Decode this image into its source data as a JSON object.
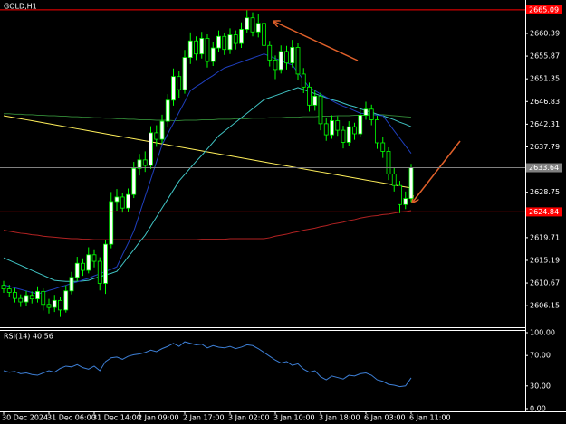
{
  "chart_data": [
    {
      "type": "candlestick",
      "title": "GOLD,H1",
      "categories": [
        "30 Dec 2024",
        null,
        null,
        null,
        null,
        null,
        null,
        null,
        "31 Dec 06:00",
        null,
        null,
        null,
        null,
        null,
        null,
        null,
        "31 Dec 14:00",
        null,
        null,
        null,
        null,
        null,
        null,
        null,
        "2 Jan 09:00",
        null,
        null,
        null,
        null,
        null,
        null,
        null,
        "2 Jan 17:00",
        null,
        null,
        null,
        null,
        null,
        null,
        null,
        "3 Jan 02:00",
        null,
        null,
        null,
        null,
        null,
        null,
        null,
        "3 Jan 10:00",
        null,
        null,
        null,
        null,
        null,
        null,
        null,
        "3 Jan 18:00",
        null,
        null,
        null,
        null,
        null,
        null,
        null,
        "6 Jan 03:00",
        null,
        null,
        null,
        null,
        null,
        null,
        null,
        "6 Jan 11:00"
      ],
      "open": [
        2610.2,
        2609.5,
        2608.8,
        2607.6,
        2606.9,
        2608.2,
        2607.5,
        2609.0,
        2606.4,
        2605.8,
        2607.2,
        2605.3,
        2609.1,
        2611.8,
        2614.6,
        2613.2,
        2616.3,
        2615.0,
        2610.6,
        2618.4,
        2626.9,
        2627.8,
        2625.6,
        2628.3,
        2633.5,
        2635.2,
        2634.1,
        2640.6,
        2639.3,
        2642.9,
        2647.1,
        2651.8,
        2649.2,
        2655.6,
        2658.9,
        2656.3,
        2659.4,
        2654.8,
        2657.5,
        2659.8,
        2657.2,
        2660.1,
        2658.4,
        2661.2,
        2663.5,
        2660.7,
        2662.4,
        2658.0,
        2655.1,
        2653.2,
        2656.8,
        2654.5,
        2657.6,
        2652.3,
        2649.7,
        2646.1,
        2647.9,
        2642.4,
        2640.2,
        2643.0,
        2641.1,
        2638.7,
        2641.8,
        2640.4,
        2644.1,
        2645.3,
        2643.2,
        2638.6,
        2636.9,
        2632.4,
        2630.1,
        2626.3,
        2627.5
      ],
      "high": [
        2611.1,
        2610.3,
        2609.6,
        2608.4,
        2609.1,
        2609.0,
        2610.0,
        2609.6,
        2607.5,
        2608.3,
        2607.9,
        2610.2,
        2612.9,
        2615.9,
        2615.6,
        2617.8,
        2617.4,
        2615.8,
        2619.3,
        2628.8,
        2629.4,
        2628.6,
        2629.5,
        2634.8,
        2636.4,
        2636.9,
        2641.9,
        2642.1,
        2644.2,
        2648.3,
        2653.4,
        2652.9,
        2657.1,
        2660.6,
        2659.8,
        2660.7,
        2660.2,
        2658.7,
        2661.0,
        2660.5,
        2661.4,
        2661.0,
        2662.6,
        2665.0,
        2664.6,
        2664.2,
        2663.1,
        2658.9,
        2656.0,
        2658.0,
        2657.9,
        2659.1,
        2658.4,
        2653.5,
        2650.6,
        2649.2,
        2648.6,
        2643.5,
        2644.1,
        2643.9,
        2642.0,
        2642.9,
        2642.6,
        2645.3,
        2646.8,
        2646.2,
        2644.0,
        2639.8,
        2637.7,
        2633.6,
        2631.0,
        2628.9,
        2634.4
      ],
      "low": [
        2608.7,
        2607.9,
        2606.8,
        2605.9,
        2606.1,
        2606.6,
        2606.8,
        2605.2,
        2604.6,
        2604.9,
        2603.9,
        2604.8,
        2608.4,
        2611.0,
        2612.1,
        2612.6,
        2613.8,
        2609.2,
        2608.5,
        2617.6,
        2625.1,
        2624.7,
        2624.9,
        2627.6,
        2632.1,
        2632.8,
        2633.4,
        2637.8,
        2638.5,
        2641.7,
        2646.0,
        2647.6,
        2648.4,
        2654.3,
        2655.1,
        2655.4,
        2653.6,
        2653.9,
        2656.6,
        2656.1,
        2656.3,
        2657.2,
        2657.5,
        2660.4,
        2659.8,
        2659.6,
        2656.9,
        2653.8,
        2651.3,
        2652.4,
        2653.2,
        2653.6,
        2651.2,
        2648.5,
        2644.8,
        2645.0,
        2641.1,
        2639.0,
        2639.4,
        2640.0,
        2637.5,
        2637.9,
        2639.2,
        2639.7,
        2643.2,
        2642.1,
        2637.4,
        2635.6,
        2631.2,
        2628.9,
        2624.6,
        2625.4,
        2626.8
      ],
      "close": [
        2609.5,
        2608.8,
        2607.6,
        2606.9,
        2608.2,
        2607.5,
        2609.0,
        2606.4,
        2605.8,
        2607.2,
        2605.3,
        2609.1,
        2611.8,
        2614.6,
        2613.2,
        2616.3,
        2615.0,
        2610.6,
        2618.4,
        2626.9,
        2627.8,
        2625.6,
        2628.3,
        2633.5,
        2635.2,
        2634.1,
        2640.6,
        2639.3,
        2642.9,
        2647.1,
        2651.8,
        2649.2,
        2655.6,
        2658.9,
        2656.3,
        2659.4,
        2654.8,
        2657.5,
        2659.8,
        2657.2,
        2660.1,
        2658.4,
        2661.2,
        2663.5,
        2660.7,
        2662.4,
        2658.0,
        2655.1,
        2653.2,
        2656.8,
        2654.5,
        2657.6,
        2652.3,
        2649.7,
        2646.1,
        2647.9,
        2642.4,
        2640.2,
        2643.0,
        2641.1,
        2638.7,
        2641.8,
        2640.4,
        2644.1,
        2645.3,
        2643.2,
        2638.6,
        2636.9,
        2632.4,
        2630.1,
        2626.3,
        2627.5,
        2633.64
      ],
      "bull_fill": "#ffffff",
      "bear_fill": "#000000",
      "outline": "#00ff00",
      "lines": [
        {
          "color": "#ffef5a",
          "values": [
            2644.0,
            2643.8,
            2643.6,
            2643.4,
            2643.2,
            2643.0,
            2642.8,
            2642.6,
            2642.4,
            2642.2,
            2642.0,
            2641.8,
            2641.6,
            2641.4,
            2641.2,
            2641.0,
            2640.8,
            2640.6,
            2640.4,
            2640.2,
            2640.0,
            2639.8,
            2639.6,
            2639.4,
            2639.2,
            2639.0,
            2638.8,
            2638.6,
            2638.4,
            2638.2,
            2638.0,
            2637.8,
            2637.6,
            2637.4,
            2637.2,
            2637.0,
            2636.8,
            2636.6,
            2636.4,
            2636.2,
            2636.0,
            2635.8,
            2635.6,
            2635.4,
            2635.2,
            2635.0,
            2634.8,
            2634.6,
            2634.4,
            2634.2,
            2634.0,
            2633.8,
            2633.6,
            2633.4,
            2633.2,
            2633.0,
            2632.8,
            2632.6,
            2632.4,
            2632.2,
            2632.0,
            2631.8,
            2631.6,
            2631.4,
            2631.2,
            2631.0,
            2630.8,
            2630.6,
            2630.4,
            2630.2,
            2630.0,
            2629.8,
            2629.6
          ]
        },
        {
          "color": "#2e7d32",
          "values": [
            2644.4,
            2644.4,
            2644.3,
            2644.3,
            2644.2,
            2644.2,
            2644.1,
            2644.1,
            2644.0,
            2644.0,
            2643.9,
            2643.9,
            2643.8,
            2643.8,
            2643.7,
            2643.7,
            2643.6,
            2643.6,
            2643.5,
            2643.5,
            2643.4,
            2643.4,
            2643.3,
            2643.3,
            2643.2,
            2643.2,
            2643.2,
            2643.1,
            2643.1,
            2643.1,
            2643.0,
            2643.0,
            2643.1,
            2643.1,
            2643.1,
            2643.2,
            2643.2,
            2643.2,
            2643.3,
            2643.3,
            2643.3,
            2643.4,
            2643.4,
            2643.4,
            2643.5,
            2643.5,
            2643.5,
            2643.6,
            2643.6,
            2643.6,
            2643.7,
            2643.7,
            2643.7,
            2643.8,
            2643.8,
            2643.8,
            2643.9,
            2643.9,
            2643.9,
            2644.0,
            2644.0,
            2644.0,
            2644.1,
            2644.1,
            2644.1,
            2644.2,
            2644.2,
            2644.2,
            2644.1,
            2644.0,
            2643.9,
            2643.8,
            2643.7
          ]
        },
        {
          "color": "#b22222",
          "values": [
            2621.2,
            2621.0,
            2620.8,
            2620.6,
            2620.5,
            2620.3,
            2620.2,
            2620.0,
            2619.9,
            2619.8,
            2619.7,
            2619.6,
            2619.5,
            2619.5,
            2619.4,
            2619.4,
            2619.3,
            2619.3,
            2619.3,
            2619.3,
            2619.3,
            2619.3,
            2619.3,
            2619.3,
            2619.3,
            2619.3,
            2619.3,
            2619.3,
            2619.3,
            2619.3,
            2619.3,
            2619.3,
            2619.3,
            2619.3,
            2619.3,
            2619.4,
            2619.4,
            2619.4,
            2619.4,
            2619.4,
            2619.5,
            2619.5,
            2619.5,
            2619.5,
            2619.5,
            2619.5,
            2619.5,
            2619.7,
            2620.0,
            2620.2,
            2620.4,
            2620.7,
            2620.9,
            2621.2,
            2621.4,
            2621.6,
            2621.9,
            2622.1,
            2622.4,
            2622.6,
            2622.8,
            2623.1,
            2623.3,
            2623.6,
            2623.8,
            2624.0,
            2624.1,
            2624.3,
            2624.4,
            2624.6,
            2624.8,
            2624.9,
            2625.1
          ]
        },
        {
          "color": "#40c4c4",
          "values": [
            2615.7,
            2615.2,
            2614.7,
            2614.2,
            2613.7,
            2613.2,
            2612.7,
            2612.2,
            2611.7,
            2611.2,
            2611.1,
            2611.0,
            2611.0,
            2611.0,
            2611.1,
            2611.2,
            2611.6,
            2611.9,
            2612.3,
            2612.6,
            2613.0,
            2614.4,
            2615.9,
            2617.3,
            2618.8,
            2620.2,
            2622.0,
            2623.8,
            2625.6,
            2627.4,
            2629.2,
            2631.0,
            2632.3,
            2633.6,
            2634.9,
            2636.1,
            2637.4,
            2638.7,
            2640.0,
            2640.9,
            2641.8,
            2642.7,
            2643.6,
            2644.5,
            2645.4,
            2646.3,
            2647.2,
            2647.6,
            2648.0,
            2648.4,
            2648.8,
            2649.2,
            2649.6,
            2649.2,
            2648.8,
            2648.4,
            2648.0,
            2647.6,
            2647.2,
            2646.9,
            2646.5,
            2646.1,
            2645.8,
            2645.4,
            2645.0,
            2644.7,
            2644.3,
            2644.0,
            2643.6,
            2643.2,
            2642.7,
            2642.3,
            2641.8
          ]
        },
        {
          "color": "#1f3fbf",
          "values": [
            2610.3,
            2610.0,
            2609.7,
            2609.4,
            2609.1,
            2608.8,
            2608.5,
            2608.8,
            2609.2,
            2609.5,
            2609.9,
            2610.2,
            2610.6,
            2610.9,
            2611.3,
            2611.6,
            2612.1,
            2612.5,
            2613.0,
            2613.4,
            2613.9,
            2616.3,
            2618.6,
            2621.0,
            2624.4,
            2627.9,
            2631.3,
            2634.8,
            2638.2,
            2640.4,
            2642.5,
            2644.7,
            2646.8,
            2649.0,
            2649.8,
            2650.5,
            2651.3,
            2652.0,
            2652.8,
            2653.5,
            2653.9,
            2654.3,
            2654.7,
            2655.1,
            2655.5,
            2655.9,
            2656.3,
            2655.9,
            2655.4,
            2655.0,
            2654.5,
            2654.1,
            2652.6,
            2651.1,
            2649.6,
            2649.0,
            2648.3,
            2647.7,
            2647.0,
            2646.4,
            2645.9,
            2645.5,
            2645.0,
            2644.5,
            2644.4,
            2644.3,
            2644.1,
            2644.0,
            2642.5,
            2641.0,
            2639.5,
            2638.0,
            2636.5
          ]
        }
      ],
      "levels": [
        {
          "value": 2665.09,
          "color": "#ff0000"
        },
        {
          "value": 2633.64,
          "color": "#808080"
        },
        {
          "value": 2624.84,
          "color": "#ff0000"
        }
      ],
      "ylim": [
        2601.86,
        2666.33
      ],
      "yticks": [
        2660.39,
        2655.87,
        2651.35,
        2646.83,
        2642.31,
        2637.79,
        2628.75,
        2619.71,
        2615.19,
        2610.67,
        2606.15
      ]
    },
    {
      "type": "line",
      "title": "RSI(14) 40.56",
      "color": "#3d7fd6",
      "values": [
        50,
        48,
        49,
        46,
        47,
        45,
        44,
        47,
        50,
        48,
        53,
        56,
        55,
        58,
        54,
        52,
        56,
        50,
        62,
        67,
        68,
        65,
        69,
        71,
        72,
        74,
        77,
        75,
        79,
        82,
        86,
        82,
        88,
        86,
        84,
        85,
        80,
        83,
        81,
        80,
        82,
        79,
        81,
        84,
        83,
        79,
        74,
        69,
        64,
        60,
        62,
        57,
        59,
        52,
        48,
        50,
        42,
        38,
        43,
        41,
        39,
        44,
        43,
        46,
        47,
        44,
        38,
        36,
        32,
        31,
        29,
        30,
        40.56
      ],
      "ylim": [
        0,
        100
      ],
      "yticks": [
        {
          "value": 100,
          "label": "100.00"
        },
        {
          "value": 70,
          "label": "70.00"
        },
        {
          "value": 30,
          "label": "30.00"
        },
        {
          "value": 0,
          "label": "0.00"
        }
      ]
    }
  ]
}
